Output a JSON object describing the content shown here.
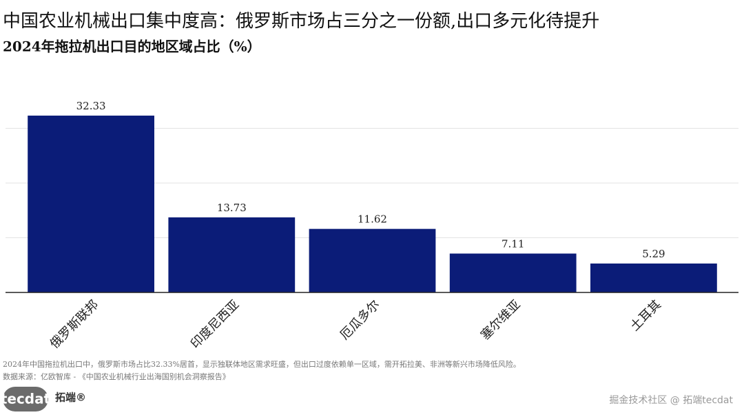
{
  "chart_data": {
    "type": "bar",
    "title": "中国农业机械出口集中度高：俄罗斯市场占三分之一份额,出口多元化待提升",
    "subtitle": "2024年拖拉机出口目的地区域占比（%）",
    "categories": [
      "俄罗斯联邦",
      "印度尼西亚",
      "厄瓜多尔",
      "塞尔维亚",
      "土耳其"
    ],
    "values": [
      32.33,
      13.73,
      11.62,
      7.11,
      5.29
    ],
    "color": "#0b1c78",
    "ylim": [
      0,
      39
    ],
    "yticks": [
      0,
      10,
      20,
      30
    ],
    "grid": true,
    "caption": "2024年中国拖拉机出口中，俄罗斯市场占比32.33%居首，显示独联体地区需求旺盛，但出口过度依赖单一区域，需开拓拉美、非洲等新兴市场降低风险。",
    "source": "数据来源：亿欧智库 - 《中国农业机械行业出海国别机会洞察报告》"
  },
  "branding": {
    "logo": "tecdat",
    "brand": "拓端®",
    "watermark": "掘金技术社区 @ 拓端tecdat"
  }
}
